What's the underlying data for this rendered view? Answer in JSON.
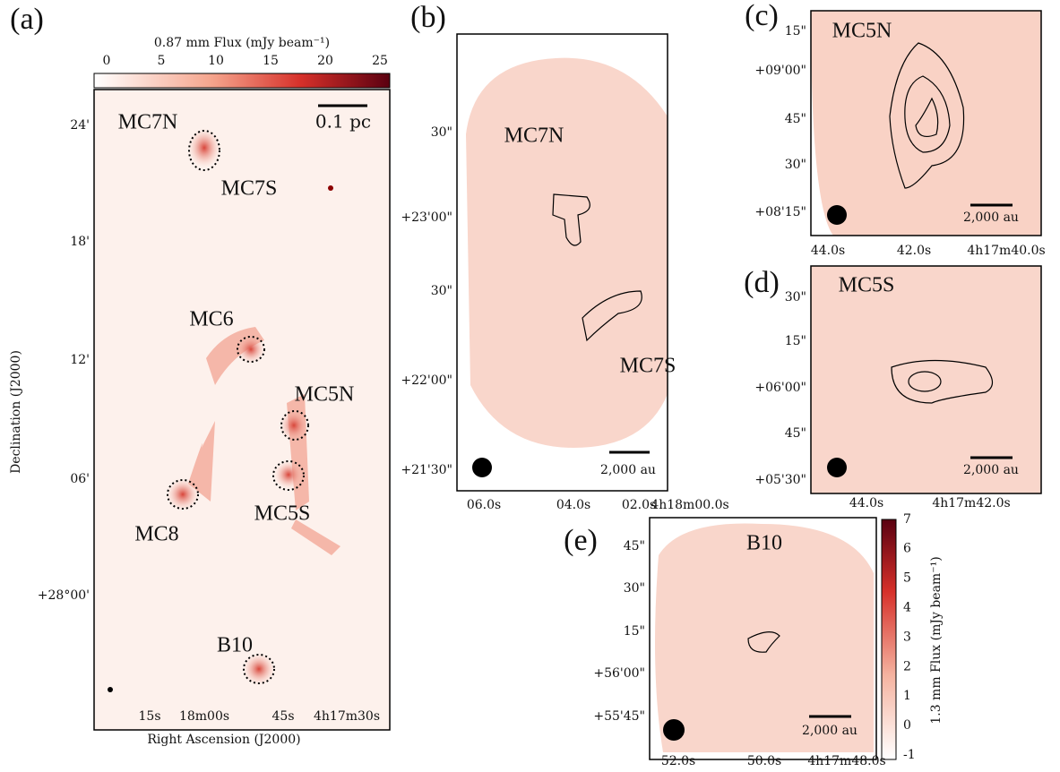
{
  "panels": [
    {
      "label": "(a)",
      "colorbar": {
        "title": "0.87 mm Flux (mJy beam⁻¹)",
        "ticks": [
          "0",
          "5",
          "10",
          "15",
          "20",
          "25"
        ]
      },
      "scalebar": "0.1 pc",
      "sources": [
        "MC7N",
        "MC7S",
        "MC6",
        "MC5N",
        "MC5S",
        "MC8",
        "B10"
      ],
      "yticks": [
        "24'",
        "18'",
        "12'",
        "06'",
        "+28°00'"
      ],
      "xticks": [
        "15s",
        "18m00s",
        "45s",
        "4h17m30s"
      ],
      "xlabel": "Right Ascension (J2000)",
      "ylabel": "Declination (J2000)"
    },
    {
      "label": "(b)",
      "scalebar": "2,000 au",
      "sources": [
        "MC7N",
        "MC7S"
      ],
      "yticks": [
        "30\"",
        "+23'00\"",
        "30\"",
        "+22'00\"",
        "+21'30\""
      ],
      "xticks": [
        "06.0s",
        "04.0s",
        "02.0s",
        "4h18m00.0s"
      ]
    },
    {
      "label": "(c)",
      "scalebar": "2,000 au",
      "sources": [
        "MC5N"
      ],
      "yticks": [
        "15\"",
        "+09'00\"",
        "45\"",
        "30\"",
        "+08'15\""
      ],
      "xticks": [
        "44.0s",
        "42.0s",
        "4h17m40.0s"
      ]
    },
    {
      "label": "(d)",
      "scalebar": "2,000 au",
      "sources": [
        "MC5S"
      ],
      "yticks": [
        "30\"",
        "15\"",
        "+06'00\"",
        "45\"",
        "+05'30\""
      ],
      "xticks": [
        "44.0s",
        "4h17m42.0s"
      ]
    },
    {
      "label": "(e)",
      "scalebar": "2,000 au",
      "sources": [
        "B10"
      ],
      "yticks": [
        "45\"",
        "30\"",
        "15\"",
        "+56'00\"",
        "+55'45\""
      ],
      "xticks": [
        "52.0s",
        "50.0s",
        "4h17m48.0s"
      ],
      "colorbar": {
        "title": "1.3 mm Flux (mJy beam⁻¹)",
        "ticks": [
          "-1",
          "0",
          "1",
          "2",
          "3",
          "4",
          "5",
          "6",
          "7"
        ]
      }
    }
  ]
}
